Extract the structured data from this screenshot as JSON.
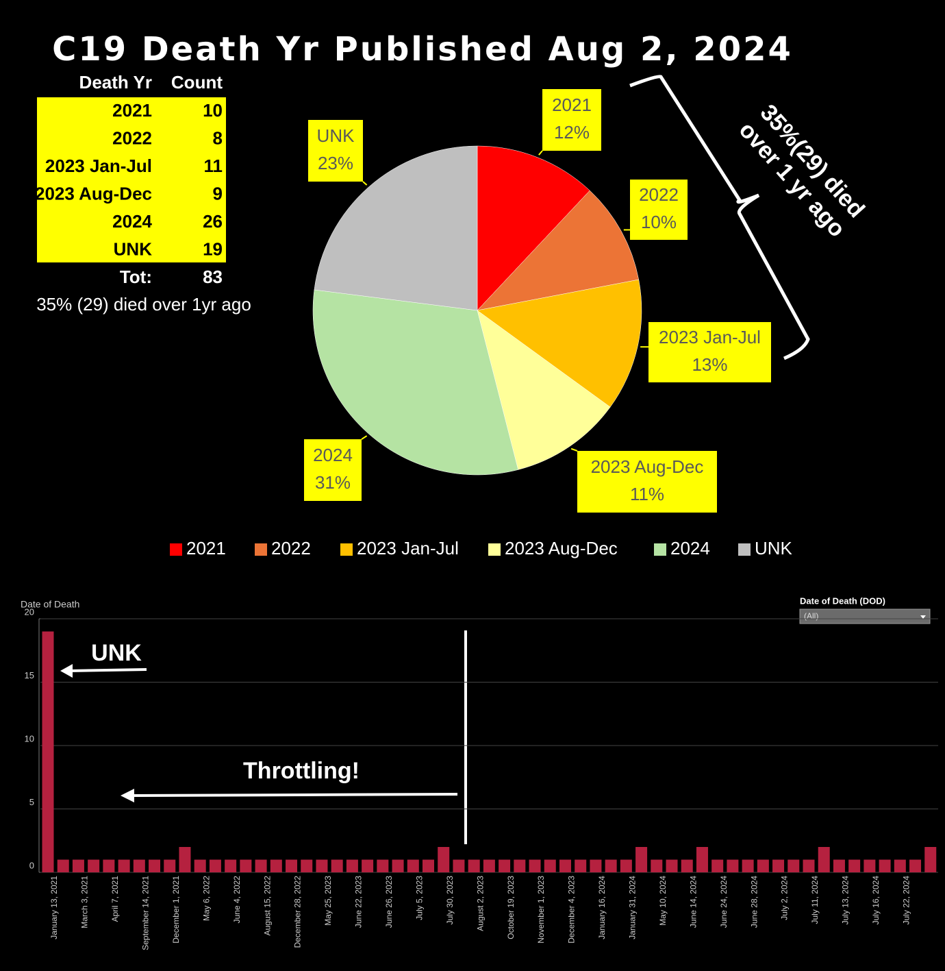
{
  "title": "C19 Death Yr Published Aug 2, 2024",
  "table": {
    "header": [
      "Death Yr",
      "Count"
    ],
    "rows": [
      [
        "2021",
        10
      ],
      [
        "2022",
        8
      ],
      [
        "2023 Jan-Jul",
        11
      ],
      [
        "2023 Aug-Dec",
        9
      ],
      [
        "2024",
        26
      ],
      [
        "UNK",
        19
      ]
    ],
    "total": [
      "Tot:",
      83
    ],
    "note": "35% (29) died over 1yr ago"
  },
  "annotations": {
    "brace": [
      "35%(29) died",
      "over 1 yr ago"
    ],
    "unk": "UNK",
    "throttling": "Throttling!"
  },
  "filter": {
    "label": "Date of Death (DOD)",
    "value": "(All)"
  },
  "chart_data": [
    {
      "type": "pie",
      "categories": [
        "2021",
        "2022",
        "2023 Jan-Jul",
        "2023 Aug-Dec",
        "2024",
        "UNK"
      ],
      "values": [
        12,
        10,
        13,
        11,
        31,
        23
      ],
      "value_labels": [
        "12%",
        "10%",
        "13%",
        "11%",
        "31%",
        "23%"
      ],
      "colors": [
        "#ff0000",
        "#ec7436",
        "#ffc000",
        "#ffff99",
        "#b5e3a3",
        "#bfbfbf"
      ],
      "legend": "bottom"
    },
    {
      "type": "bar",
      "title": "Date of Death",
      "categories": [
        "January 13, 2021",
        null,
        "March 3, 2021",
        null,
        "April 7, 2021",
        null,
        "September 14, 2021",
        null,
        "December 1, 2021",
        null,
        "May 6, 2022",
        null,
        "June 4, 2022",
        null,
        "August 15, 2022",
        null,
        "December 28, 2022",
        null,
        "May 25, 2023",
        null,
        "June 22, 2023",
        null,
        "June 26, 2023",
        null,
        "July 5, 2023",
        null,
        "July 30, 2023",
        null,
        "August 2, 2023",
        null,
        "October 19, 2023",
        null,
        "November 1, 2023",
        null,
        "December 4, 2023",
        null,
        "January 16, 2024",
        null,
        "January 31, 2024",
        null,
        "May 10, 2024",
        null,
        "June 14, 2024",
        null,
        "June 24, 2024",
        null,
        "June 28, 2024",
        null,
        "July 2, 2024",
        null,
        "July 11, 2024",
        null,
        "July 13, 2024",
        null,
        "July 16, 2024",
        null,
        "July 22, 2024",
        null,
        null
      ],
      "values": [
        19,
        1,
        1,
        1,
        1,
        1,
        1,
        1,
        1,
        2,
        1,
        1,
        1,
        1,
        1,
        1,
        1,
        1,
        1,
        1,
        1,
        1,
        1,
        1,
        1,
        1,
        2,
        1,
        1,
        1,
        1,
        1,
        1,
        1,
        1,
        1,
        1,
        1,
        1,
        2,
        1,
        1,
        1,
        2,
        1,
        1,
        1,
        1,
        1,
        1,
        1,
        2,
        1,
        1,
        1,
        1,
        1,
        1,
        2
      ],
      "color": "#b5213f",
      "ylim": [
        0,
        20
      ],
      "yticks": [
        0,
        5,
        10,
        15,
        20
      ],
      "grid": true
    }
  ]
}
